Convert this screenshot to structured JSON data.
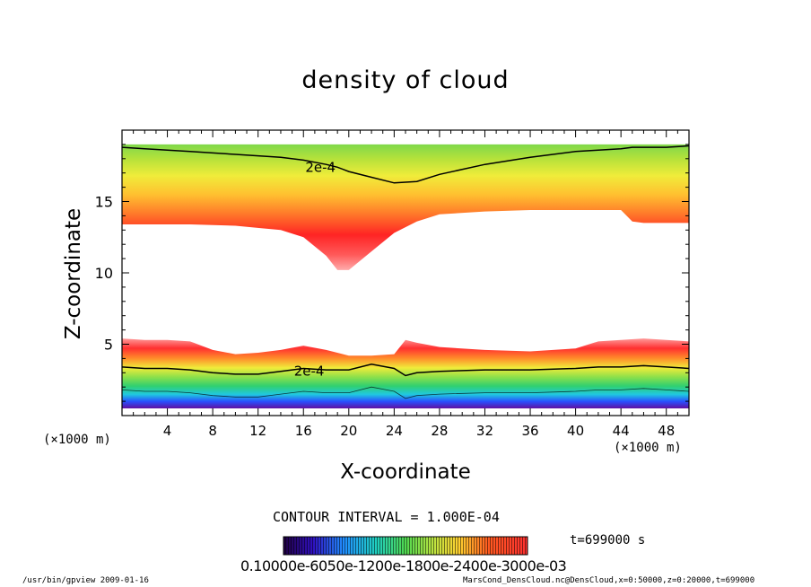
{
  "chart_data": {
    "type": "heatmap",
    "title": "density of cloud",
    "xlabel": "X-coordinate",
    "ylabel": "Z-coordinate",
    "x_unit": "(×1000 m)",
    "xlim": [
      0,
      50
    ],
    "ylim": [
      0,
      20
    ],
    "x_ticks": [
      4,
      8,
      12,
      16,
      20,
      24,
      28,
      32,
      36,
      40,
      44,
      48
    ],
    "y_ticks": [
      5,
      10,
      15
    ],
    "contour_interval": "CONTOUR INTERVAL = 1.000E-04",
    "contour_labels": [
      {
        "text": "2e-4",
        "x": 17.5,
        "z": 17.4
      },
      {
        "text": "2e-4",
        "x": 16.5,
        "z": 3.1
      }
    ],
    "time": "t=699000 s",
    "colorbar_labels": "0.10000e-6050e-1200e-1800e-2400e-3000e-03",
    "upper_layer": {
      "x": [
        0,
        2,
        6,
        10,
        14,
        16,
        18,
        19,
        20,
        22,
        24,
        26,
        28,
        32,
        36,
        40,
        44,
        45,
        46,
        48,
        50
      ],
      "top": [
        19.0,
        19.0,
        19.0,
        19.0,
        19.0,
        19.0,
        19.0,
        19.0,
        19.0,
        19.0,
        19.0,
        19.0,
        19.0,
        19.0,
        19.0,
        19.0,
        19.0,
        19.0,
        19.0,
        19.0,
        19.0
      ],
      "bottom": [
        13.4,
        13.4,
        13.4,
        13.3,
        13.0,
        12.5,
        11.2,
        10.2,
        10.2,
        11.5,
        12.8,
        13.6,
        14.1,
        14.3,
        14.4,
        14.4,
        14.4,
        13.6,
        13.5,
        13.5,
        13.5
      ],
      "contour_2e4": [
        18.8,
        18.7,
        18.5,
        18.3,
        18.1,
        17.9,
        17.6,
        17.4,
        17.1,
        16.7,
        16.3,
        16.4,
        16.9,
        17.6,
        18.1,
        18.5,
        18.7,
        18.8,
        18.8,
        18.8,
        18.9
      ]
    },
    "lower_layer": {
      "x": [
        0,
        2,
        4,
        6,
        8,
        10,
        12,
        14,
        16,
        18,
        20,
        22,
        24,
        25,
        26,
        28,
        32,
        36,
        40,
        42,
        44,
        46,
        48,
        50
      ],
      "top": [
        5.4,
        5.3,
        5.3,
        5.2,
        4.6,
        4.3,
        4.4,
        4.6,
        4.9,
        4.6,
        4.2,
        4.2,
        4.3,
        5.3,
        5.1,
        4.8,
        4.6,
        4.5,
        4.7,
        5.2,
        5.3,
        5.4,
        5.3,
        5.2
      ],
      "contour_2e4": [
        3.4,
        3.3,
        3.3,
        3.2,
        3.0,
        2.9,
        2.9,
        3.1,
        3.3,
        3.2,
        3.2,
        3.6,
        3.3,
        2.8,
        3.0,
        3.1,
        3.2,
        3.2,
        3.3,
        3.4,
        3.4,
        3.5,
        3.4,
        3.3
      ],
      "bottom": [
        0.5,
        0.5,
        0.5,
        0.5,
        0.5,
        0.5,
        0.5,
        0.5,
        0.5,
        0.5,
        0.5,
        0.5,
        0.5,
        0.5,
        0.5,
        0.5,
        0.5,
        0.5,
        0.5,
        0.5,
        0.5,
        0.5,
        0.5,
        0.5
      ]
    }
  },
  "footer": {
    "left": "/usr/bin/gpview  2009-01-16",
    "right": "MarsCond_DensCloud.nc@DensCloud,x=0:50000,z=0:20000,t=699000"
  }
}
